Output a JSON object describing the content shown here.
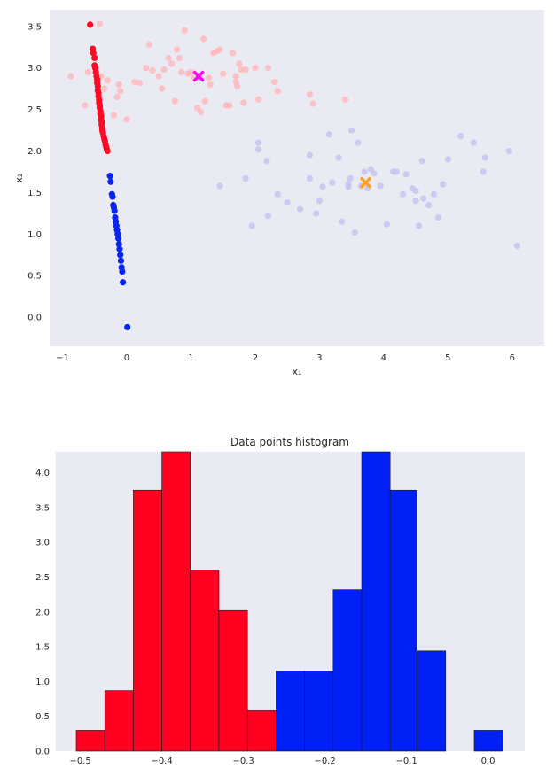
{
  "figure": {
    "background": "#ffffff",
    "axes_background": "#eaeaf2"
  },
  "chart_data": [
    {
      "type": "scatter",
      "title": "",
      "xlabel": "x₁",
      "ylabel": "x₂",
      "xlim": [
        -1.2,
        6.5
      ],
      "ylim": [
        -0.35,
        3.7
      ],
      "xticks": [
        -1,
        0,
        1,
        2,
        3,
        4,
        5,
        6
      ],
      "yticks": [
        0.0,
        0.5,
        1.0,
        1.5,
        2.0,
        2.5,
        3.0,
        3.5
      ],
      "xtick_labels": [
        "−1",
        "0",
        "1",
        "2",
        "3",
        "4",
        "5",
        "6"
      ],
      "ytick_labels": [
        "0.0",
        "0.5",
        "1.0",
        "1.5",
        "2.0",
        "2.5",
        "3.0",
        "3.5"
      ],
      "grid": false,
      "series": [
        {
          "color": "#ffb3b8",
          "alpha": 0.75,
          "marker": "circle",
          "x": [
            -0.87,
            -0.65,
            -0.6,
            -0.42,
            -0.4,
            -0.35,
            -0.3,
            -0.2,
            -0.15,
            -0.1,
            -0.12,
            0.0,
            0.12,
            0.3,
            0.35,
            0.5,
            0.55,
            0.58,
            0.65,
            0.7,
            0.75,
            0.78,
            0.82,
            0.85,
            0.9,
            0.95,
            1.0,
            1.05,
            1.1,
            1.15,
            1.2,
            1.22,
            1.28,
            1.3,
            1.35,
            1.4,
            1.45,
            1.5,
            1.55,
            1.6,
            1.65,
            1.7,
            1.72,
            1.75,
            1.78,
            1.82,
            1.85,
            2.0,
            2.05,
            2.2,
            2.3,
            2.35,
            2.85,
            2.9,
            3.4,
            0.2,
            0.4,
            1.7
          ],
          "y": [
            2.9,
            2.55,
            2.95,
            3.53,
            2.9,
            2.75,
            2.85,
            2.43,
            2.65,
            2.72,
            2.8,
            2.38,
            2.83,
            3.0,
            3.28,
            2.9,
            2.75,
            2.98,
            3.12,
            3.05,
            2.6,
            3.22,
            3.12,
            2.95,
            3.45,
            2.93,
            2.95,
            2.88,
            2.52,
            2.47,
            3.35,
            2.6,
            2.88,
            2.8,
            3.18,
            3.2,
            3.22,
            2.93,
            2.55,
            2.55,
            3.18,
            2.83,
            2.78,
            3.05,
            2.98,
            2.58,
            2.98,
            3.0,
            2.62,
            3.0,
            2.83,
            2.72,
            2.68,
            2.57,
            2.62,
            2.82,
            2.97,
            2.9
          ]
        },
        {
          "color": "#c3c6f0",
          "alpha": 0.85,
          "marker": "circle",
          "x": [
            1.45,
            1.85,
            1.95,
            2.05,
            2.05,
            2.18,
            2.2,
            2.35,
            2.5,
            2.7,
            2.85,
            2.85,
            2.95,
            3.0,
            3.05,
            3.15,
            3.2,
            3.3,
            3.35,
            3.45,
            3.5,
            3.55,
            3.6,
            3.65,
            3.7,
            3.8,
            3.85,
            3.95,
            4.05,
            4.15,
            4.2,
            4.3,
            4.35,
            4.45,
            4.5,
            4.5,
            4.55,
            4.6,
            4.62,
            4.7,
            4.78,
            4.85,
            4.92,
            5.0,
            5.2,
            5.4,
            5.55,
            5.58,
            5.95,
            6.08,
            3.48,
            3.75,
            3.45
          ],
          "y": [
            1.58,
            1.67,
            1.1,
            2.1,
            2.02,
            1.88,
            1.22,
            1.48,
            1.38,
            1.3,
            1.67,
            1.95,
            1.25,
            1.4,
            1.57,
            2.2,
            1.62,
            1.92,
            1.15,
            1.57,
            2.25,
            1.02,
            2.1,
            1.58,
            1.75,
            1.78,
            1.73,
            1.58,
            1.12,
            1.75,
            1.75,
            1.48,
            1.72,
            1.55,
            1.52,
            1.4,
            1.1,
            1.88,
            1.43,
            1.35,
            1.48,
            1.2,
            1.6,
            1.9,
            2.18,
            2.1,
            1.75,
            1.92,
            2.0,
            0.86,
            1.67,
            1.55,
            1.6
          ]
        },
        {
          "color": "#ff0a24",
          "alpha": 1.0,
          "marker": "circle",
          "x": [
            -0.57,
            -0.53,
            -0.52,
            -0.5,
            -0.5,
            -0.49,
            -0.48,
            -0.47,
            -0.46,
            -0.46,
            -0.45,
            -0.45,
            -0.44,
            -0.44,
            -0.43,
            -0.43,
            -0.42,
            -0.42,
            -0.41,
            -0.41,
            -0.4,
            -0.4,
            -0.39,
            -0.39,
            -0.38,
            -0.38,
            -0.37,
            -0.36,
            -0.35,
            -0.34,
            -0.33,
            -0.32,
            -0.31,
            -0.3
          ],
          "y": [
            3.52,
            3.23,
            3.18,
            3.12,
            3.03,
            3.0,
            2.95,
            2.9,
            2.86,
            2.82,
            2.78,
            2.73,
            2.7,
            2.66,
            2.62,
            2.58,
            2.55,
            2.52,
            2.48,
            2.45,
            2.42,
            2.38,
            2.35,
            2.32,
            2.28,
            2.25,
            2.22,
            2.18,
            2.15,
            2.12,
            2.08,
            2.05,
            2.02,
            2.0
          ]
        },
        {
          "color": "#0525f0",
          "alpha": 1.0,
          "marker": "circle",
          "x": [
            -0.26,
            -0.25,
            -0.23,
            -0.22,
            -0.21,
            -0.2,
            -0.19,
            -0.18,
            -0.17,
            -0.16,
            -0.15,
            -0.14,
            -0.13,
            -0.12,
            -0.11,
            -0.1,
            -0.09,
            -0.08,
            -0.07,
            -0.06,
            0.01
          ],
          "y": [
            1.7,
            1.63,
            1.48,
            1.45,
            1.35,
            1.32,
            1.28,
            1.2,
            1.15,
            1.1,
            1.05,
            1.0,
            0.95,
            0.88,
            0.82,
            0.75,
            0.68,
            0.6,
            0.55,
            0.42,
            -0.12
          ]
        },
        {
          "color": "#ff00ff",
          "alpha": 1.0,
          "marker": "x",
          "x": [
            1.12
          ],
          "y": [
            2.9
          ]
        },
        {
          "color": "#ffa020",
          "alpha": 1.0,
          "marker": "x",
          "x": [
            3.72
          ],
          "y": [
            1.62
          ]
        }
      ]
    },
    {
      "type": "bar",
      "title": "Data points histogram",
      "xlabel": "",
      "ylabel": "",
      "xlim": [
        -0.53,
        0.045
      ],
      "ylim": [
        0,
        4.3
      ],
      "xticks": [
        -0.5,
        -0.4,
        -0.3,
        -0.2,
        -0.1,
        0.0
      ],
      "yticks": [
        0.0,
        0.5,
        1.0,
        1.5,
        2.0,
        2.5,
        3.0,
        3.5,
        4.0
      ],
      "xtick_labels": [
        "−0.5",
        "−0.4",
        "−0.3",
        "−0.2",
        "−0.1",
        "0.0"
      ],
      "ytick_labels": [
        "0.0",
        "0.5",
        "1.0",
        "1.5",
        "2.0",
        "2.5",
        "3.0",
        "3.5",
        "4.0"
      ],
      "grid": false,
      "series": [
        {
          "color": "#ff0020",
          "bin_edges": [
            -0.505,
            -0.47,
            -0.435,
            -0.4,
            -0.365,
            -0.33,
            -0.295,
            -0.26
          ],
          "values": [
            0.3,
            0.87,
            3.75,
            4.3,
            2.6,
            2.02,
            0.58
          ]
        },
        {
          "color": "#0020f5",
          "bin_edges": [
            -0.26,
            -0.225,
            -0.19,
            -0.155,
            -0.12,
            -0.087,
            -0.052,
            -0.017,
            0.018
          ],
          "values": [
            1.15,
            1.15,
            2.32,
            4.3,
            3.75,
            1.44,
            0.0,
            0.3
          ]
        }
      ]
    }
  ]
}
